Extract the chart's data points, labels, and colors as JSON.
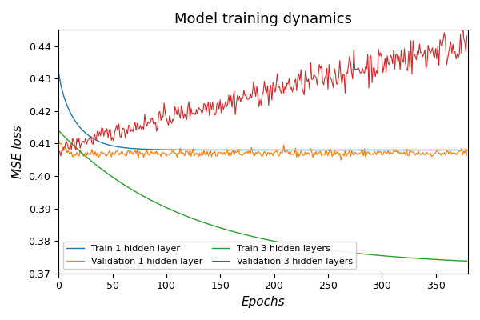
{
  "title": "Model training dynamics",
  "xlabel": "Epochs",
  "ylabel": "MSE loss",
  "n_epochs": 380,
  "ylim": [
    0.37,
    0.445
  ],
  "xlim": [
    0,
    380
  ],
  "legend": [
    {
      "label": "Train 1 hidden layer",
      "color": "#1f77b4"
    },
    {
      "label": "Validation 1 hidden layer",
      "color": "#ff7f0e"
    },
    {
      "label": "Train 3 hidden layers",
      "color": "#2ca02c"
    },
    {
      "label": "Validation 3 hidden layers",
      "color": "#d62728"
    }
  ],
  "seed": 42,
  "title_fontsize": 13,
  "axis_label_fontsize": 11,
  "tick_fontsize": 9,
  "legend_fontsize": 8
}
